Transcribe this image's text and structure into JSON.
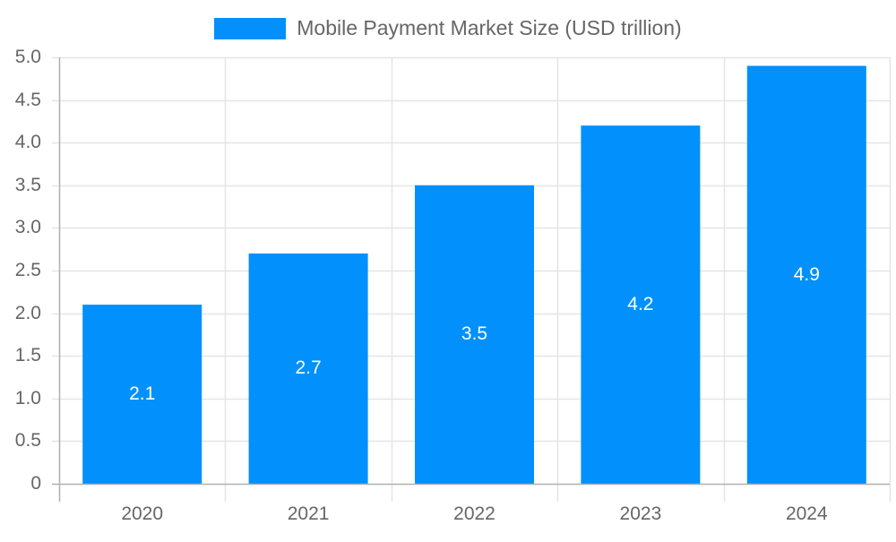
{
  "chart_data": {
    "type": "bar",
    "title": "",
    "categories": [
      "2020",
      "2021",
      "2022",
      "2023",
      "2024"
    ],
    "series": [
      {
        "name": "Mobile Payment Market Size (USD trillion)",
        "values": [
          2.1,
          2.7,
          3.5,
          4.2,
          4.9
        ],
        "color": "#0290fd"
      }
    ],
    "values": [
      2.1,
      2.7,
      3.5,
      4.2,
      4.9
    ],
    "xlabel": "",
    "ylabel": "",
    "ylim": [
      0,
      5.0
    ],
    "yticks": [
      "0",
      "0.5",
      "1.0",
      "1.5",
      "2.0",
      "2.5",
      "3.0",
      "3.5",
      "4.0",
      "4.5",
      "5.0"
    ],
    "grid": true,
    "legend_position": "top",
    "data_labels": [
      "2.1",
      "2.7",
      "3.5",
      "4.2",
      "4.9"
    ]
  },
  "legend": {
    "label": "Mobile Payment Market Size (USD trillion)",
    "color": "#0290fd"
  },
  "colors": {
    "bar": "#0290fd",
    "grid": "#e5e5e5",
    "axis": "#b0b0b0",
    "text": "#666666"
  }
}
